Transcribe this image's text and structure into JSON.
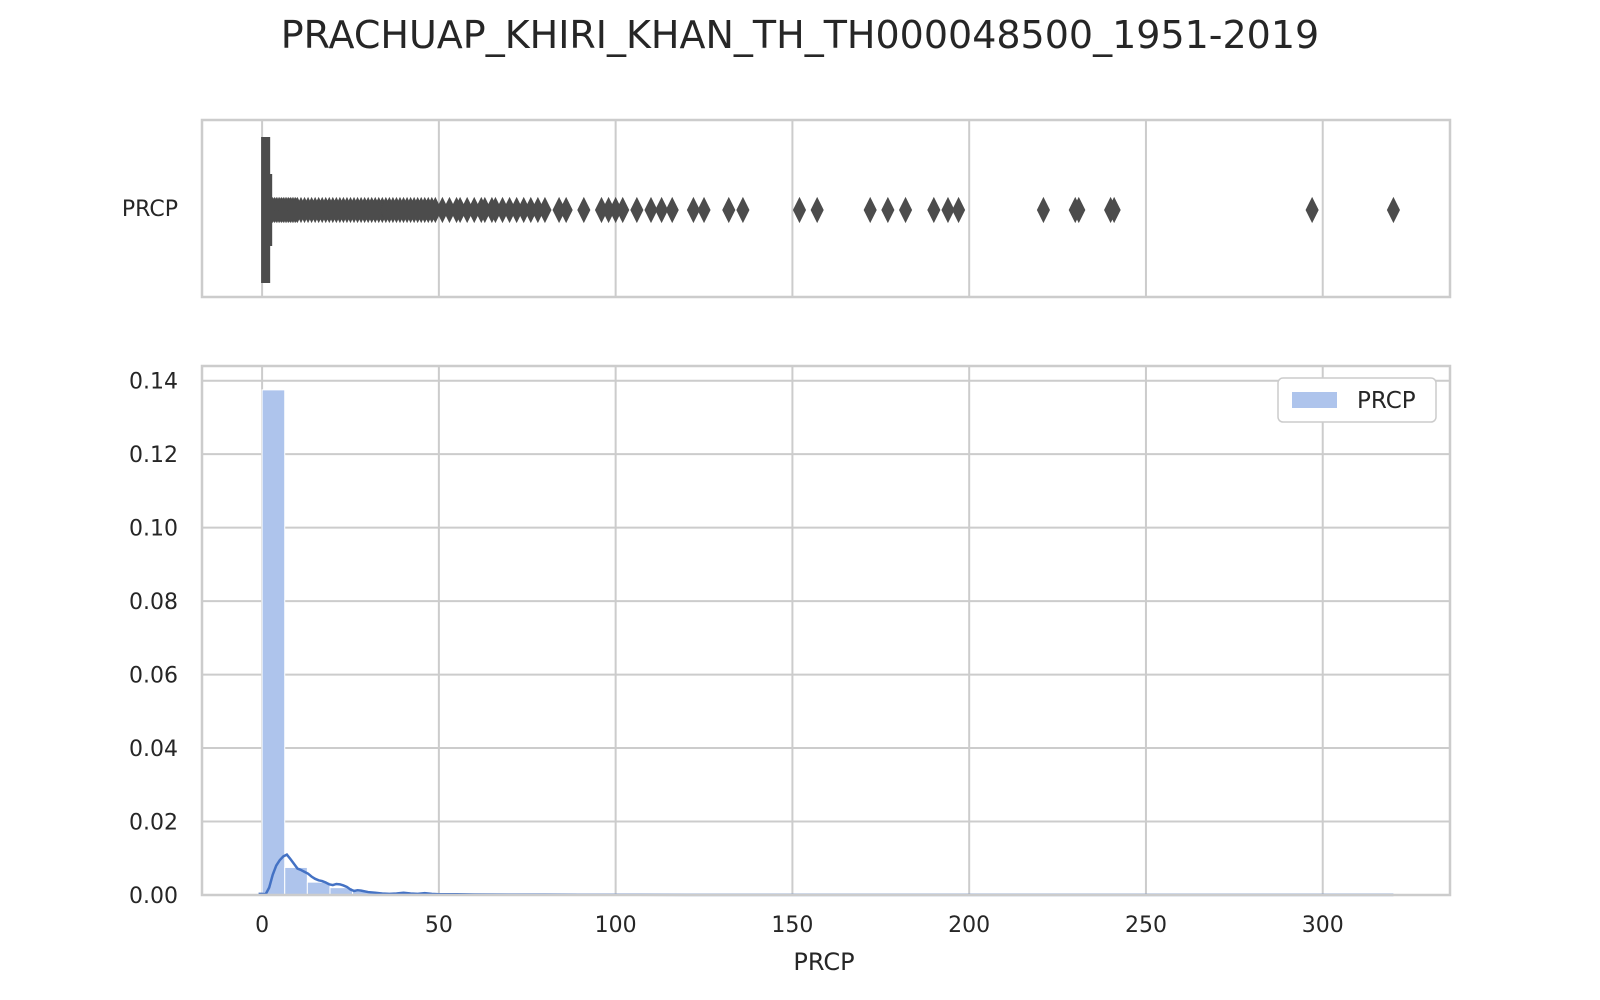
{
  "chart_data": [
    {
      "type": "box",
      "title": "PRACHUAP_KHIRI_KHAN_TH_TH000048500_1951-2019",
      "category_label": "PRCP",
      "xlim": [
        -17,
        336
      ],
      "xticks": [
        0,
        50,
        100,
        150,
        200,
        250,
        300
      ],
      "grid": true,
      "box": {
        "q1": 0,
        "median": 0,
        "q3": 2,
        "whisker_low": 0,
        "whisker_high": 2.5
      },
      "outliers": [
        3,
        3.5,
        4,
        4.5,
        5,
        5.5,
        6,
        6.5,
        7,
        7.5,
        8,
        8.5,
        9,
        9.5,
        10,
        11,
        12,
        13,
        14,
        15,
        16,
        17,
        18,
        19,
        20,
        21,
        22,
        23,
        24,
        25,
        26,
        27,
        28,
        29,
        30,
        31,
        32,
        33,
        34,
        35,
        36,
        37,
        38,
        39,
        40,
        41,
        42,
        43,
        44,
        45,
        46,
        47,
        48,
        49,
        51,
        53,
        55,
        56,
        58,
        60,
        62,
        63,
        65,
        66,
        68,
        70,
        72,
        74,
        76,
        78,
        80,
        84,
        86,
        91,
        96,
        98,
        100,
        102,
        106,
        110,
        113,
        116,
        122,
        125,
        132,
        136,
        152,
        157,
        172,
        177,
        182,
        190,
        194,
        197,
        221,
        230,
        231,
        240,
        241,
        297,
        320
      ],
      "color": "#4c4c4c"
    },
    {
      "type": "histogram",
      "xlabel": "PRCP",
      "xlim": [
        -17,
        336
      ],
      "ylim": [
        0,
        0.144
      ],
      "xticks": [
        0,
        50,
        100,
        150,
        200,
        250,
        300
      ],
      "yticks": [
        "0.00",
        "0.02",
        "0.04",
        "0.06",
        "0.08",
        "0.10",
        "0.12",
        "0.14"
      ],
      "grid": true,
      "legend": {
        "location": "top-right",
        "entries": [
          "PRCP"
        ]
      },
      "bar_color": "#aec4ec",
      "line_color": "#4472c4",
      "bins": [
        {
          "x0": 0,
          "x1": 6.4,
          "density": 0.1375
        },
        {
          "x0": 6.4,
          "x1": 12.8,
          "density": 0.0075
        },
        {
          "x0": 12.8,
          "x1": 19.2,
          "density": 0.0035
        },
        {
          "x0": 19.2,
          "x1": 25.6,
          "density": 0.002
        },
        {
          "x0": 25.6,
          "x1": 32,
          "density": 0.001
        },
        {
          "x0": 32,
          "x1": 38.4,
          "density": 0.0006
        },
        {
          "x0": 38.4,
          "x1": 44.8,
          "density": 0.0004
        },
        {
          "x0": 44.8,
          "x1": 51.2,
          "density": 0.0003
        },
        {
          "x0": 51.2,
          "x1": 57.6,
          "density": 0.0002
        },
        {
          "x0": 57.6,
          "x1": 64,
          "density": 0.00015
        },
        {
          "x0": 64,
          "x1": 70.4,
          "density": 0.0001
        },
        {
          "x0": 70.4,
          "x1": 76.8,
          "density": 0.0001
        },
        {
          "x0": 76.8,
          "x1": 83.2,
          "density": 8e-05
        },
        {
          "x0": 83.2,
          "x1": 89.6,
          "density": 6e-05
        },
        {
          "x0": 89.6,
          "x1": 96,
          "density": 5e-05
        },
        {
          "x0": 96,
          "x1": 102.4,
          "density": 5e-05
        },
        {
          "x0": 102.4,
          "x1": 108.8,
          "density": 3e-05
        },
        {
          "x0": 108.8,
          "x1": 115.2,
          "density": 3e-05
        },
        {
          "x0": 115.2,
          "x1": 121.6,
          "density": 2e-05
        },
        {
          "x0": 121.6,
          "x1": 128,
          "density": 2e-05
        },
        {
          "x0": 128,
          "x1": 134.4,
          "density": 2e-05
        },
        {
          "x0": 134.4,
          "x1": 140.8,
          "density": 1e-05
        },
        {
          "x0": 150.4,
          "x1": 156.8,
          "density": 1e-05
        },
        {
          "x0": 172.8,
          "x1": 179.2,
          "density": 1e-05
        },
        {
          "x0": 179.2,
          "x1": 185.6,
          "density": 1e-05
        },
        {
          "x0": 192,
          "x1": 198.4,
          "density": 1e-05
        },
        {
          "x0": 217.6,
          "x1": 224,
          "density": 1e-05
        },
        {
          "x0": 230.4,
          "x1": 236.8,
          "density": 1e-05
        },
        {
          "x0": 236.8,
          "x1": 243.2,
          "density": 1e-05
        },
        {
          "x0": 294.4,
          "x1": 300.8,
          "density": 1e-05
        },
        {
          "x0": 313.6,
          "x1": 320,
          "density": 1e-05
        }
      ],
      "kde": {
        "x": [
          -1,
          0,
          1,
          2,
          3,
          4,
          5,
          6,
          7,
          8,
          9,
          10,
          11,
          12,
          13,
          14,
          15,
          16,
          17,
          18,
          19,
          20,
          21,
          22,
          23,
          24,
          25,
          26,
          27,
          28,
          30,
          32,
          34,
          36,
          38,
          40,
          42,
          44,
          46,
          48,
          50,
          55,
          60,
          70,
          80,
          90,
          100,
          120,
          150,
          200,
          250,
          300,
          320
        ],
        "y": [
          0.0003,
          0.0003,
          0.0002,
          0.002,
          0.0055,
          0.008,
          0.0095,
          0.0105,
          0.011,
          0.0098,
          0.0085,
          0.0072,
          0.0068,
          0.0063,
          0.0058,
          0.005,
          0.0044,
          0.004,
          0.0038,
          0.0034,
          0.0029,
          0.0027,
          0.003,
          0.0029,
          0.0026,
          0.0022,
          0.0015,
          0.0011,
          0.0013,
          0.0012,
          0.0008,
          0.0006,
          0.0004,
          0.0003,
          0.0004,
          0.0006,
          0.0004,
          0.0003,
          0.0005,
          0.0003,
          0.0002,
          0.0002,
          0.00015,
          0.0001,
          0.0001,
          8e-05,
          8e-05,
          5e-05,
          3e-05,
          2e-05,
          2e-05,
          2e-05,
          2e-05
        ]
      }
    }
  ]
}
